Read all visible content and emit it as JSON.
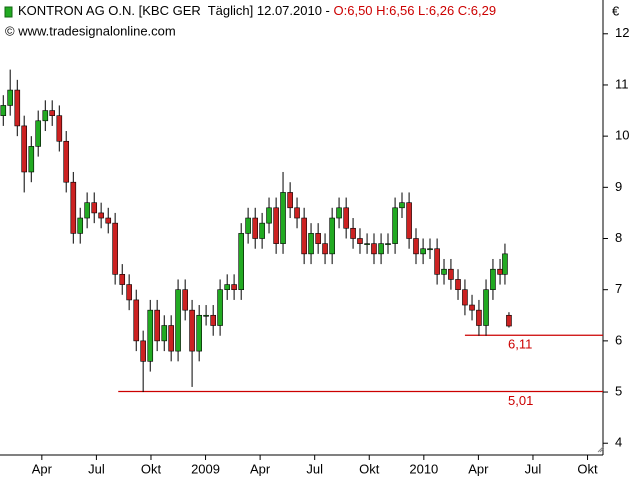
{
  "chart_data": {
    "type": "candlestick",
    "title": "KONTRON AG O.N. [KBC GER  Täglich] 12.07.2010 -",
    "quote": "O:6,50 H:6,56 L:6,26 C:6,29",
    "source": "© www.tradesignalonline.com",
    "y_unit": "€",
    "up_color": "#22aa22",
    "down_color": "#cc2222",
    "level_color": "#cc0000",
    "xlim": [
      0.7,
      33.85
    ],
    "ylim": [
      3.77,
      12.66
    ],
    "yticks": [
      4,
      5,
      6,
      7,
      8,
      9,
      10,
      11,
      12
    ],
    "xticks": [
      {
        "value": 3,
        "label": "Apr"
      },
      {
        "value": 6,
        "label": "Jul"
      },
      {
        "value": 9,
        "label": "Okt"
      },
      {
        "value": 12,
        "label": "2009"
      },
      {
        "value": 15,
        "label": "Apr"
      },
      {
        "value": 18,
        "label": "Jul"
      },
      {
        "value": 21,
        "label": "Okt"
      },
      {
        "value": 24,
        "label": "2010"
      },
      {
        "value": 27,
        "label": "Apr"
      },
      {
        "value": 30,
        "label": "Jul"
      },
      {
        "value": 33,
        "label": "Okt"
      }
    ],
    "x": [
      0.88,
      1.26,
      1.65,
      2.03,
      2.42,
      2.8,
      3.19,
      3.57,
      3.96,
      4.34,
      4.73,
      5.11,
      5.49,
      5.88,
      6.26,
      6.65,
      7.03,
      7.42,
      7.8,
      8.19,
      8.57,
      8.96,
      9.34,
      9.73,
      10.11,
      10.49,
      10.88,
      11.26,
      11.65,
      12.03,
      12.42,
      12.8,
      13.19,
      13.57,
      13.96,
      14.34,
      14.73,
      15.11,
      15.49,
      15.88,
      16.26,
      16.65,
      17.03,
      17.42,
      17.8,
      18.19,
      18.57,
      18.96,
      19.34,
      19.73,
      20.11,
      20.49,
      20.88,
      21.26,
      21.65,
      22.03,
      22.42,
      22.8,
      23.19,
      23.57,
      23.96,
      24.34,
      24.73,
      25.11,
      25.49,
      25.88,
      26.26,
      26.65,
      27.03,
      27.42,
      27.8,
      28.19,
      28.46,
      28.68
    ],
    "open": [
      10.4,
      10.6,
      10.9,
      10.2,
      9.3,
      9.8,
      10.3,
      10.5,
      10.4,
      9.9,
      9.1,
      8.1,
      8.4,
      8.7,
      8.5,
      8.4,
      8.3,
      7.3,
      7.1,
      6.8,
      6.0,
      5.6,
      6.6,
      6.0,
      6.3,
      5.8,
      7.0,
      6.6,
      5.8,
      6.5,
      6.5,
      6.3,
      7.0,
      7.1,
      7.0,
      8.1,
      8.4,
      8.0,
      8.3,
      8.6,
      7.9,
      8.9,
      8.6,
      8.4,
      7.7,
      8.1,
      7.9,
      7.7,
      8.4,
      8.6,
      8.2,
      8.0,
      7.9,
      7.9,
      7.7,
      7.9,
      7.9,
      8.6,
      8.7,
      8.0,
      7.7,
      7.8,
      7.8,
      7.3,
      7.4,
      7.2,
      7.0,
      6.7,
      6.6,
      6.3,
      7.0,
      7.4,
      7.3,
      6.5
    ],
    "high": [
      10.8,
      11.3,
      11.1,
      10.4,
      10.0,
      10.5,
      10.7,
      10.7,
      10.6,
      10.1,
      9.3,
      8.6,
      8.9,
      8.9,
      8.7,
      8.6,
      8.5,
      7.5,
      7.3,
      7.0,
      6.2,
      6.8,
      6.8,
      6.5,
      6.5,
      7.2,
      7.2,
      6.8,
      6.7,
      6.7,
      6.7,
      7.2,
      7.3,
      7.3,
      8.3,
      8.6,
      8.6,
      8.5,
      8.8,
      8.8,
      9.3,
      9.1,
      8.8,
      8.6,
      8.3,
      8.3,
      8.1,
      8.6,
      8.8,
      8.8,
      8.4,
      8.2,
      8.1,
      8.1,
      8.1,
      8.1,
      8.8,
      8.9,
      8.9,
      8.2,
      8.0,
      8.0,
      8.0,
      7.6,
      7.6,
      7.4,
      7.2,
      6.9,
      6.8,
      7.2,
      7.6,
      7.6,
      7.9,
      6.56
    ],
    "low": [
      10.2,
      10.4,
      10.0,
      8.9,
      9.1,
      9.6,
      10.1,
      10.2,
      9.7,
      8.9,
      7.9,
      7.9,
      8.2,
      8.3,
      8.2,
      8.1,
      7.1,
      6.9,
      6.6,
      5.8,
      5.0,
      5.4,
      5.8,
      5.8,
      5.6,
      5.6,
      6.4,
      5.1,
      5.6,
      6.3,
      6.1,
      6.1,
      6.8,
      6.8,
      6.8,
      7.9,
      7.8,
      7.8,
      8.1,
      7.7,
      7.7,
      8.4,
      8.2,
      7.5,
      7.5,
      7.7,
      7.5,
      7.5,
      8.2,
      8.0,
      7.8,
      7.7,
      7.7,
      7.5,
      7.5,
      7.7,
      7.7,
      8.4,
      7.8,
      7.5,
      7.5,
      7.6,
      7.1,
      7.1,
      7.0,
      6.8,
      6.5,
      6.4,
      6.1,
      6.1,
      6.8,
      7.1,
      7.1,
      6.26
    ],
    "close": [
      10.6,
      10.9,
      10.2,
      9.3,
      9.8,
      10.3,
      10.5,
      10.4,
      9.9,
      9.1,
      8.1,
      8.4,
      8.7,
      8.5,
      8.4,
      8.3,
      7.3,
      7.1,
      6.8,
      6.0,
      5.6,
      6.6,
      6.0,
      6.3,
      5.8,
      7.0,
      6.6,
      5.8,
      6.5,
      6.5,
      6.3,
      7.0,
      7.1,
      7.0,
      8.1,
      8.4,
      8.0,
      8.3,
      8.6,
      7.9,
      8.9,
      8.6,
      8.4,
      7.7,
      8.1,
      7.9,
      7.7,
      8.4,
      8.6,
      8.2,
      8.0,
      7.9,
      7.9,
      7.7,
      7.9,
      7.9,
      8.6,
      8.7,
      8.0,
      7.7,
      7.8,
      7.8,
      7.3,
      7.4,
      7.2,
      7.0,
      6.7,
      6.6,
      6.3,
      7.0,
      7.4,
      7.3,
      7.7,
      6.29
    ],
    "levels": [
      {
        "value": 6.11,
        "label": "6,11",
        "x_start": 26.26
      },
      {
        "value": 5.01,
        "label": "5,01",
        "x_start": 7.2
      }
    ]
  }
}
